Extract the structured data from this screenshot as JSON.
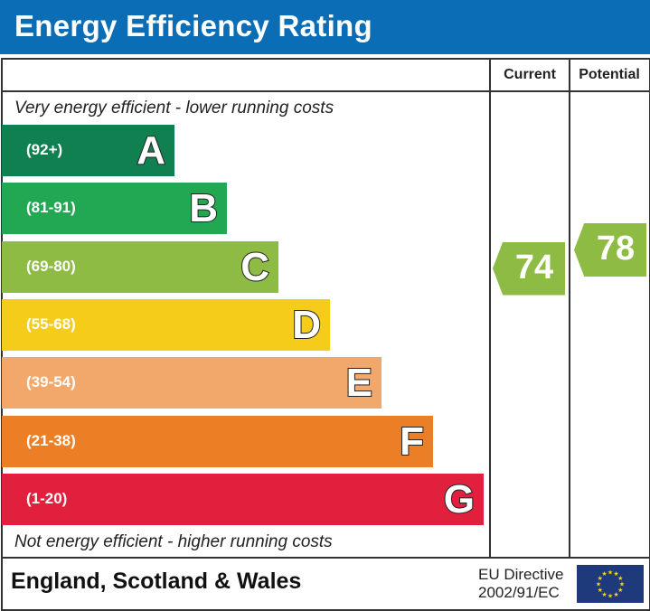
{
  "title": "Energy Efficiency Rating",
  "columns": {
    "current": "Current",
    "potential": "Potential"
  },
  "top_note": "Very energy efficient - lower running costs",
  "bottom_note": "Not energy efficient - higher running costs",
  "footer": {
    "region": "England, Scotland & Wales",
    "directive_line1": "EU Directive",
    "directive_line2": "2002/91/EC",
    "flag_icon": "eu-flag-icon"
  },
  "chart_data": {
    "type": "bar",
    "categories": [
      "A",
      "B",
      "C",
      "D",
      "E",
      "F",
      "G"
    ],
    "ranges": [
      "(92+)",
      "(81-91)",
      "(69-80)",
      "(55-68)",
      "(39-54)",
      "(21-38)",
      "(1-20)"
    ],
    "colors": [
      "#108051",
      "#22a853",
      "#8dbb44",
      "#f6cc1a",
      "#f2a86a",
      "#ec7f26",
      "#e0203c"
    ],
    "current": {
      "value": 74,
      "band": "C",
      "color": "#8dbb44"
    },
    "potential": {
      "value": 78,
      "band": "C",
      "color": "#8dbb44"
    }
  }
}
